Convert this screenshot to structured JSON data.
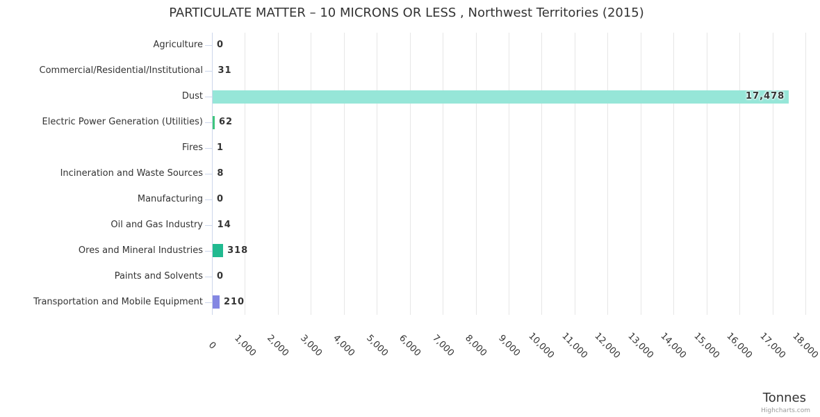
{
  "chart_data": {
    "type": "bar",
    "orientation": "horizontal",
    "title": "PARTICULATE MATTER – 10 MICRONS OR LESS , Northwest Territories (2015)",
    "value_axis_title": "Tonnes",
    "credits": "Highcharts.com",
    "categories": [
      "Agriculture",
      "Commercial/Residential/Institutional",
      "Dust",
      "Electric Power Generation (Utilities)",
      "Fires",
      "Incineration and Waste Sources",
      "Manufacturing",
      "Oil and Gas Industry",
      "Ores and Mineral Industries",
      "Paints and Solvents",
      "Transportation and Mobile Equipment"
    ],
    "values": [
      0,
      31,
      17478,
      62,
      1,
      8,
      0,
      14,
      318,
      0,
      210
    ],
    "value_labels": [
      "0",
      "31",
      "17,478",
      "62",
      "1",
      "8",
      "0",
      "14",
      "318",
      "0",
      "210"
    ],
    "bar_colors": [
      null,
      null,
      "#96e6d8",
      "#3ec57d",
      null,
      null,
      null,
      null,
      "#21ba90",
      null,
      "#8487e2"
    ],
    "value_axis": {
      "min": 0,
      "max": 18000,
      "tick_interval": 1000,
      "tick_labels": [
        "0",
        "1,000",
        "2,000",
        "3,000",
        "4,000",
        "5,000",
        "6,000",
        "7,000",
        "8,000",
        "9,000",
        "10,000",
        "11,000",
        "12,000",
        "13,000",
        "14,000",
        "15,000",
        "16,000",
        "17,000",
        "18,000"
      ],
      "label_rotation": 45
    },
    "grid": true,
    "legend": false,
    "colors": {
      "text": "#333333",
      "axis_line": "#ccd6eb",
      "gridline": "#e6e6e6",
      "credits": "#999999"
    }
  }
}
